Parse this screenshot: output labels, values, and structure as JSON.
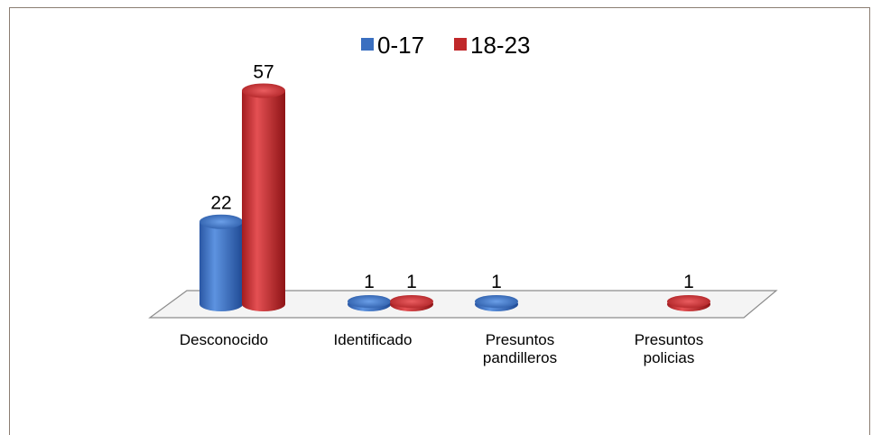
{
  "chart_data": {
    "type": "bar",
    "categories": [
      "Desconocido",
      "Identificado",
      "Presuntos pandilleros",
      "Presuntos policias"
    ],
    "series": [
      {
        "name": "0-17",
        "values": [
          22,
          1,
          1,
          null
        ]
      },
      {
        "name": "18-23",
        "values": [
          57,
          1,
          null,
          1
        ]
      }
    ],
    "ylim": [
      0,
      60
    ],
    "grid": false,
    "legend_position": "top",
    "colors": {
      "0-17": "#3a6fc0",
      "18-23": "#c0282a"
    }
  }
}
